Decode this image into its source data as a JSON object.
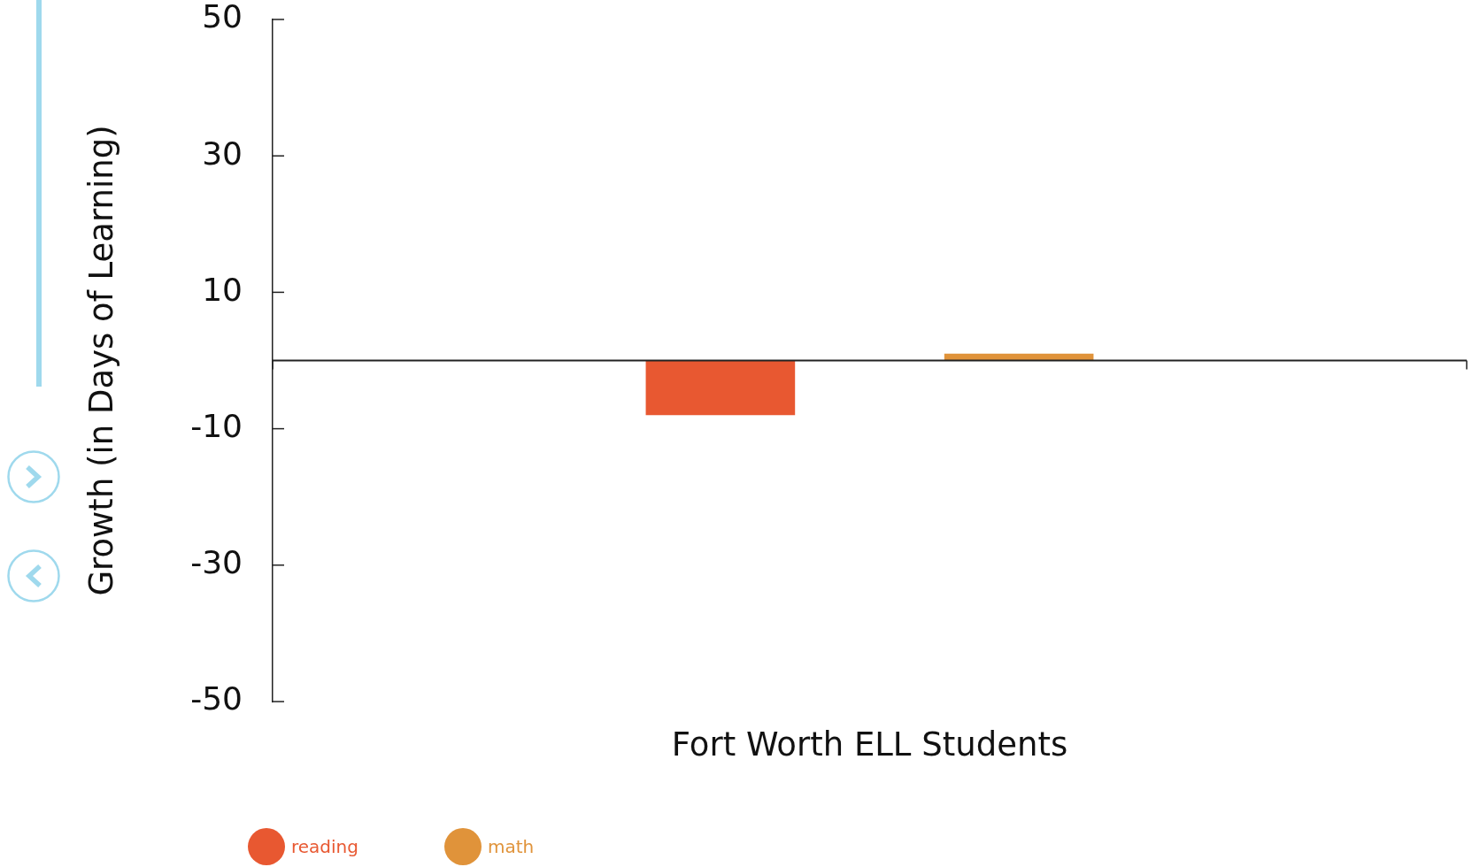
{
  "chart_data": {
    "type": "bar",
    "categories": [
      "Fort Worth ELL Students"
    ],
    "series": [
      {
        "name": "reading",
        "color": "#e85831",
        "values": [
          -8
        ]
      },
      {
        "name": "math",
        "color": "#e0933a",
        "values": [
          1
        ]
      }
    ],
    "ylabel": "Growth (in Days of Learning)",
    "ylim": [
      -50,
      50
    ],
    "yticks": [
      -50,
      -30,
      -10,
      10,
      30,
      50
    ],
    "legend": "bottom left"
  }
}
